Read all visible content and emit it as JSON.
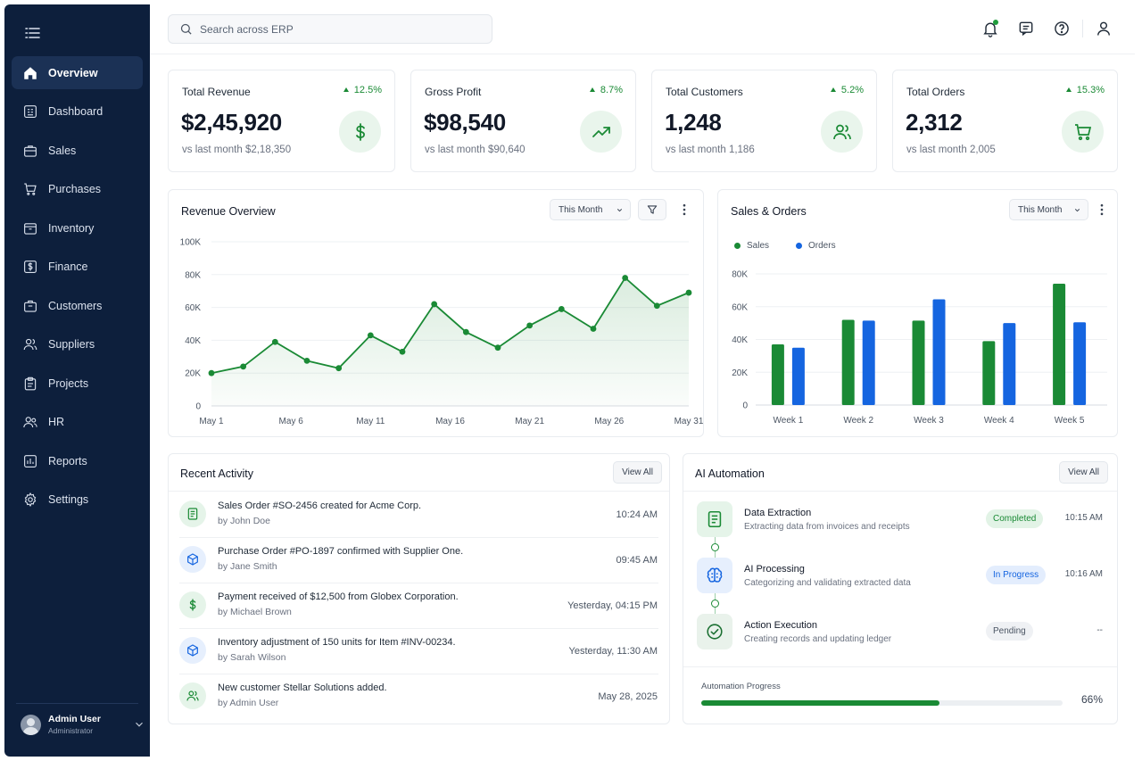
{
  "search": {
    "placeholder": "Search across ERP"
  },
  "sidebar": {
    "items": [
      {
        "label": "Overview",
        "icon": "home-icon",
        "active": true
      },
      {
        "label": "Dashboard",
        "icon": "dashboard-icon"
      },
      {
        "label": "Sales",
        "icon": "briefcase-icon"
      },
      {
        "label": "Purchases",
        "icon": "cart-icon"
      },
      {
        "label": "Inventory",
        "icon": "box-icon"
      },
      {
        "label": "Finance",
        "icon": "dollar-icon"
      },
      {
        "label": "Customers",
        "icon": "building-icon"
      },
      {
        "label": "Suppliers",
        "icon": "users-icon"
      },
      {
        "label": "Projects",
        "icon": "clipboard-icon"
      },
      {
        "label": "HR",
        "icon": "people-icon"
      },
      {
        "label": "Reports",
        "icon": "report-icon"
      },
      {
        "label": "Settings",
        "icon": "gear-icon"
      }
    ],
    "user": {
      "name": "Admin User",
      "role": "Administrator"
    }
  },
  "kpis": [
    {
      "title": "Total Revenue",
      "change": "12.5%",
      "value": "$2,45,920",
      "sub": "vs last month $2,18,350",
      "icon": "dollar-icon"
    },
    {
      "title": "Gross Profit",
      "change": "8.7%",
      "value": "$98,540",
      "sub": "vs last month $90,640",
      "icon": "trend-up-icon"
    },
    {
      "title": "Total Customers",
      "change": "5.2%",
      "value": "1,248",
      "sub": "vs last month 1,186",
      "icon": "users-icon"
    },
    {
      "title": "Total Orders",
      "change": "15.3%",
      "value": "2,312",
      "sub": "vs last month 2,005",
      "icon": "cart-icon"
    }
  ],
  "revenue": {
    "title": "Revenue Overview",
    "period": "This Month"
  },
  "salesOrders": {
    "title": "Sales & Orders",
    "period": "This Month"
  },
  "chart_data": [
    {
      "type": "area",
      "title": "Revenue Overview",
      "x": [
        "May 1",
        "May 3",
        "May 5",
        "May 7",
        "May 9",
        "May 11",
        "May 13",
        "May 15",
        "May 17",
        "May 19",
        "May 21",
        "May 23",
        "May 25",
        "May 27",
        "May 29",
        "May 31"
      ],
      "xticks": [
        "May 1",
        "May 6",
        "May 11",
        "May 16",
        "May 21",
        "May 26",
        "May 31"
      ],
      "series": [
        {
          "values": [
            20000,
            24000,
            39000,
            27500,
            23000,
            43000,
            33000,
            62000,
            45000,
            35500,
            49000,
            59000,
            47000,
            78000,
            61000,
            69000
          ]
        }
      ],
      "ylim": [
        0,
        100000
      ],
      "yticks": [
        "0",
        "20K",
        "40K",
        "60K",
        "80K",
        "100K"
      ],
      "grid": true,
      "color": "#1a8a35"
    },
    {
      "type": "bar",
      "title": "Sales & Orders",
      "categories": [
        "Week 1",
        "Week 2",
        "Week 3",
        "Week 4",
        "Week 5"
      ],
      "series": [
        {
          "name": "Sales",
          "values": [
            37000,
            52000,
            51500,
            39000,
            74000
          ],
          "color": "#1a8a35"
        },
        {
          "name": "Orders",
          "values": [
            35000,
            51500,
            64500,
            50000,
            50500
          ],
          "color": "#1565e0"
        }
      ],
      "ylim": [
        0,
        80000
      ],
      "yticks": [
        "0",
        "20K",
        "40K",
        "60K",
        "80K"
      ],
      "legend": "top-left",
      "grid": true
    }
  ],
  "activity": {
    "title": "Recent Activity",
    "view_all": "View All",
    "items": [
      {
        "title": "Sales Order #SO-2456 created for Acme Corp.",
        "by": "by John Doe",
        "time": "10:24 AM",
        "icon": "document-icon"
      },
      {
        "title": "Purchase Order #PO-1897 confirmed with Supplier One.",
        "by": "by Jane Smith",
        "time": "09:45 AM",
        "icon": "cube-icon"
      },
      {
        "title": "Payment received of $12,500 from Globex Corporation.",
        "by": "by Michael Brown",
        "time": "Yesterday, 04:15 PM",
        "icon": "dollar-icon"
      },
      {
        "title": "Inventory adjustment of 150 units for Item #INV-00234.",
        "by": "by Sarah Wilson",
        "time": "Yesterday, 11:30 AM",
        "icon": "cube-icon"
      },
      {
        "title": "New customer Stellar Solutions added.",
        "by": "by Admin User",
        "time": "May 28, 2025",
        "icon": "users-icon"
      }
    ]
  },
  "automation": {
    "title": "AI Automation",
    "view_all": "View All",
    "steps": [
      {
        "title": "Data Extraction",
        "desc": "Extracting data from invoices and receipts",
        "status": "Completed",
        "time": "10:15 AM",
        "icon": "document-icon"
      },
      {
        "title": "AI Processing",
        "desc": "Categorizing and validating extracted data",
        "status": "In Progress",
        "time": "10:16 AM",
        "icon": "brain-icon"
      },
      {
        "title": "Action Execution",
        "desc": "Creating records and updating ledger",
        "status": "Pending",
        "time": "--",
        "icon": "check-circle-icon"
      }
    ],
    "progress_label": "Automation Progress",
    "progress_value": "66%",
    "progress_fraction": 0.66
  }
}
